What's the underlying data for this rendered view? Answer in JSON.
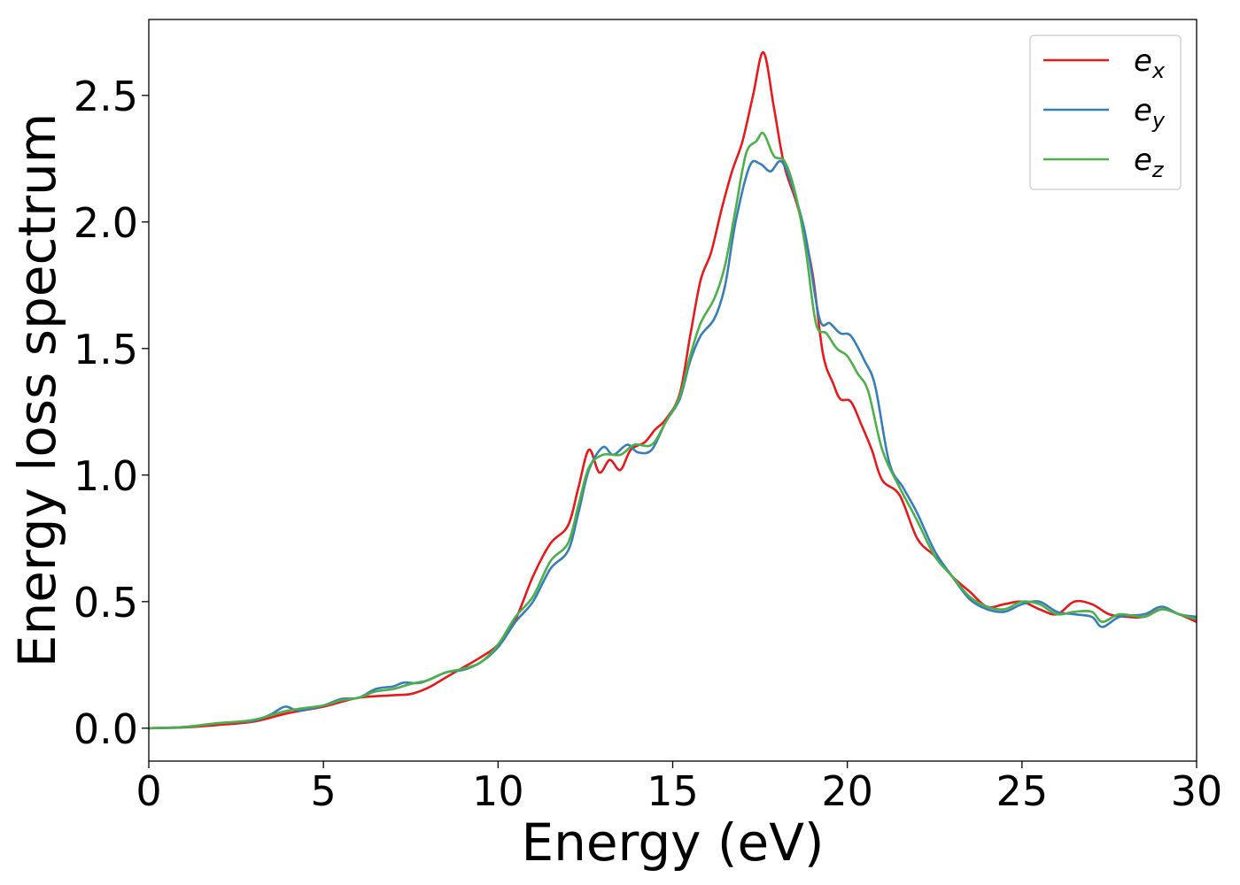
{
  "chart_data": {
    "type": "line",
    "xlabel": "Energy (eV)",
    "ylabel": "Energy loss spectrum",
    "xlim": [
      0,
      30
    ],
    "ylim": [
      -0.13,
      2.8
    ],
    "xticks": [
      0,
      5,
      10,
      15,
      20,
      25,
      30
    ],
    "xtick_labels": [
      "0",
      "5",
      "10",
      "15",
      "20",
      "25",
      "30"
    ],
    "yticks": [
      0.0,
      0.5,
      1.0,
      1.5,
      2.0,
      2.5
    ],
    "ytick_labels": [
      "0.0",
      "0.5",
      "1.0",
      "1.5",
      "2.0",
      "2.5"
    ],
    "grid": false,
    "legend_position": "top-right",
    "series": [
      {
        "name": "e",
        "subscript": "x",
        "color": "#e41a1c",
        "points": [
          [
            0,
            0
          ],
          [
            1,
            0.003
          ],
          [
            2,
            0.013
          ],
          [
            3,
            0.026
          ],
          [
            4,
            0.06
          ],
          [
            5,
            0.085
          ],
          [
            6,
            0.12
          ],
          [
            7,
            0.13
          ],
          [
            7.5,
            0.135
          ],
          [
            8,
            0.16
          ],
          [
            8.5,
            0.2
          ],
          [
            9,
            0.24
          ],
          [
            9.5,
            0.28
          ],
          [
            10,
            0.33
          ],
          [
            10.5,
            0.43
          ],
          [
            11,
            0.6
          ],
          [
            11.5,
            0.73
          ],
          [
            12,
            0.8
          ],
          [
            12.3,
            0.95
          ],
          [
            12.6,
            1.1
          ],
          [
            12.9,
            1.01
          ],
          [
            13.2,
            1.06
          ],
          [
            13.5,
            1.02
          ],
          [
            13.8,
            1.1
          ],
          [
            14.2,
            1.13
          ],
          [
            14.5,
            1.18
          ],
          [
            14.8,
            1.22
          ],
          [
            15.2,
            1.32
          ],
          [
            15.5,
            1.55
          ],
          [
            15.8,
            1.77
          ],
          [
            16.1,
            1.88
          ],
          [
            16.4,
            2.05
          ],
          [
            16.7,
            2.2
          ],
          [
            17,
            2.32
          ],
          [
            17.3,
            2.5
          ],
          [
            17.6,
            2.67
          ],
          [
            17.9,
            2.45
          ],
          [
            18.2,
            2.22
          ],
          [
            18.6,
            2.05
          ],
          [
            19,
            1.8
          ],
          [
            19.3,
            1.48
          ],
          [
            19.6,
            1.36
          ],
          [
            19.8,
            1.3
          ],
          [
            20.1,
            1.29
          ],
          [
            20.4,
            1.2
          ],
          [
            20.7,
            1.1
          ],
          [
            21,
            0.98
          ],
          [
            21.5,
            0.92
          ],
          [
            22,
            0.75
          ],
          [
            22.5,
            0.68
          ],
          [
            23,
            0.6
          ],
          [
            23.5,
            0.54
          ],
          [
            24,
            0.48
          ],
          [
            24.5,
            0.49
          ],
          [
            25,
            0.5
          ],
          [
            25.5,
            0.47
          ],
          [
            26,
            0.45
          ],
          [
            26.5,
            0.5
          ],
          [
            27,
            0.49
          ],
          [
            27.5,
            0.45
          ],
          [
            28,
            0.44
          ],
          [
            28.5,
            0.44
          ],
          [
            29,
            0.47
          ],
          [
            29.5,
            0.45
          ],
          [
            30,
            0.42
          ]
        ]
      },
      {
        "name": "e",
        "subscript": "y",
        "color": "#377eb8",
        "points": [
          [
            0,
            0
          ],
          [
            1,
            0.004
          ],
          [
            2,
            0.02
          ],
          [
            3,
            0.03
          ],
          [
            3.5,
            0.055
          ],
          [
            3.9,
            0.085
          ],
          [
            4.3,
            0.07
          ],
          [
            5,
            0.09
          ],
          [
            5.5,
            0.115
          ],
          [
            6,
            0.12
          ],
          [
            6.5,
            0.155
          ],
          [
            7,
            0.165
          ],
          [
            7.3,
            0.18
          ],
          [
            7.8,
            0.18
          ],
          [
            8.5,
            0.22
          ],
          [
            9,
            0.23
          ],
          [
            9.5,
            0.26
          ],
          [
            10,
            0.32
          ],
          [
            10.5,
            0.42
          ],
          [
            11,
            0.5
          ],
          [
            11.5,
            0.63
          ],
          [
            12,
            0.7
          ],
          [
            12.3,
            0.85
          ],
          [
            12.6,
            1.02
          ],
          [
            13,
            1.11
          ],
          [
            13.3,
            1.08
          ],
          [
            13.7,
            1.12
          ],
          [
            14,
            1.09
          ],
          [
            14.4,
            1.1
          ],
          [
            14.8,
            1.21
          ],
          [
            15.2,
            1.3
          ],
          [
            15.5,
            1.45
          ],
          [
            15.8,
            1.55
          ],
          [
            16.2,
            1.62
          ],
          [
            16.5,
            1.75
          ],
          [
            16.8,
            2.0
          ],
          [
            17.2,
            2.22
          ],
          [
            17.5,
            2.23
          ],
          [
            17.8,
            2.2
          ],
          [
            18.1,
            2.24
          ],
          [
            18.4,
            2.15
          ],
          [
            18.8,
            1.95
          ],
          [
            19.2,
            1.62
          ],
          [
            19.5,
            1.6
          ],
          [
            19.8,
            1.56
          ],
          [
            20.1,
            1.55
          ],
          [
            20.5,
            1.45
          ],
          [
            20.8,
            1.35
          ],
          [
            21.2,
            1.05
          ],
          [
            21.6,
            0.95
          ],
          [
            22,
            0.85
          ],
          [
            22.5,
            0.7
          ],
          [
            23,
            0.6
          ],
          [
            23.5,
            0.51
          ],
          [
            24,
            0.47
          ],
          [
            24.5,
            0.46
          ],
          [
            25,
            0.49
          ],
          [
            25.5,
            0.5
          ],
          [
            26,
            0.46
          ],
          [
            26.5,
            0.45
          ],
          [
            27,
            0.44
          ],
          [
            27.3,
            0.4
          ],
          [
            27.8,
            0.44
          ],
          [
            28.5,
            0.45
          ],
          [
            29,
            0.48
          ],
          [
            29.5,
            0.45
          ],
          [
            30,
            0.44
          ]
        ]
      },
      {
        "name": "e",
        "subscript": "z",
        "color": "#4daf4a",
        "points": [
          [
            0,
            0
          ],
          [
            1,
            0.005
          ],
          [
            2,
            0.02
          ],
          [
            3,
            0.033
          ],
          [
            4,
            0.07
          ],
          [
            5,
            0.09
          ],
          [
            5.5,
            0.11
          ],
          [
            6,
            0.12
          ],
          [
            6.5,
            0.145
          ],
          [
            7,
            0.155
          ],
          [
            7.5,
            0.175
          ],
          [
            8,
            0.19
          ],
          [
            8.5,
            0.22
          ],
          [
            9,
            0.235
          ],
          [
            9.5,
            0.26
          ],
          [
            10,
            0.33
          ],
          [
            10.5,
            0.44
          ],
          [
            11,
            0.52
          ],
          [
            11.5,
            0.66
          ],
          [
            12,
            0.73
          ],
          [
            12.3,
            0.88
          ],
          [
            12.6,
            1.03
          ],
          [
            13,
            1.08
          ],
          [
            13.5,
            1.08
          ],
          [
            13.9,
            1.12
          ],
          [
            14.4,
            1.12
          ],
          [
            14.8,
            1.21
          ],
          [
            15.2,
            1.31
          ],
          [
            15.5,
            1.47
          ],
          [
            15.8,
            1.6
          ],
          [
            16.2,
            1.7
          ],
          [
            16.5,
            1.83
          ],
          [
            16.8,
            2.05
          ],
          [
            17.1,
            2.27
          ],
          [
            17.4,
            2.32
          ],
          [
            17.6,
            2.35
          ],
          [
            17.9,
            2.26
          ],
          [
            18.2,
            2.24
          ],
          [
            18.5,
            2.12
          ],
          [
            18.8,
            1.9
          ],
          [
            19.1,
            1.6
          ],
          [
            19.4,
            1.56
          ],
          [
            19.7,
            1.5
          ],
          [
            20,
            1.47
          ],
          [
            20.3,
            1.4
          ],
          [
            20.6,
            1.33
          ],
          [
            21,
            1.1
          ],
          [
            21.5,
            0.95
          ],
          [
            22,
            0.82
          ],
          [
            22.5,
            0.68
          ],
          [
            23,
            0.6
          ],
          [
            23.5,
            0.52
          ],
          [
            24,
            0.48
          ],
          [
            24.5,
            0.47
          ],
          [
            25,
            0.5
          ],
          [
            25.5,
            0.49
          ],
          [
            26,
            0.45
          ],
          [
            26.5,
            0.46
          ],
          [
            27,
            0.46
          ],
          [
            27.3,
            0.42
          ],
          [
            27.8,
            0.45
          ],
          [
            28.5,
            0.44
          ],
          [
            29,
            0.47
          ],
          [
            29.5,
            0.45
          ],
          [
            30,
            0.43
          ]
        ]
      }
    ]
  }
}
